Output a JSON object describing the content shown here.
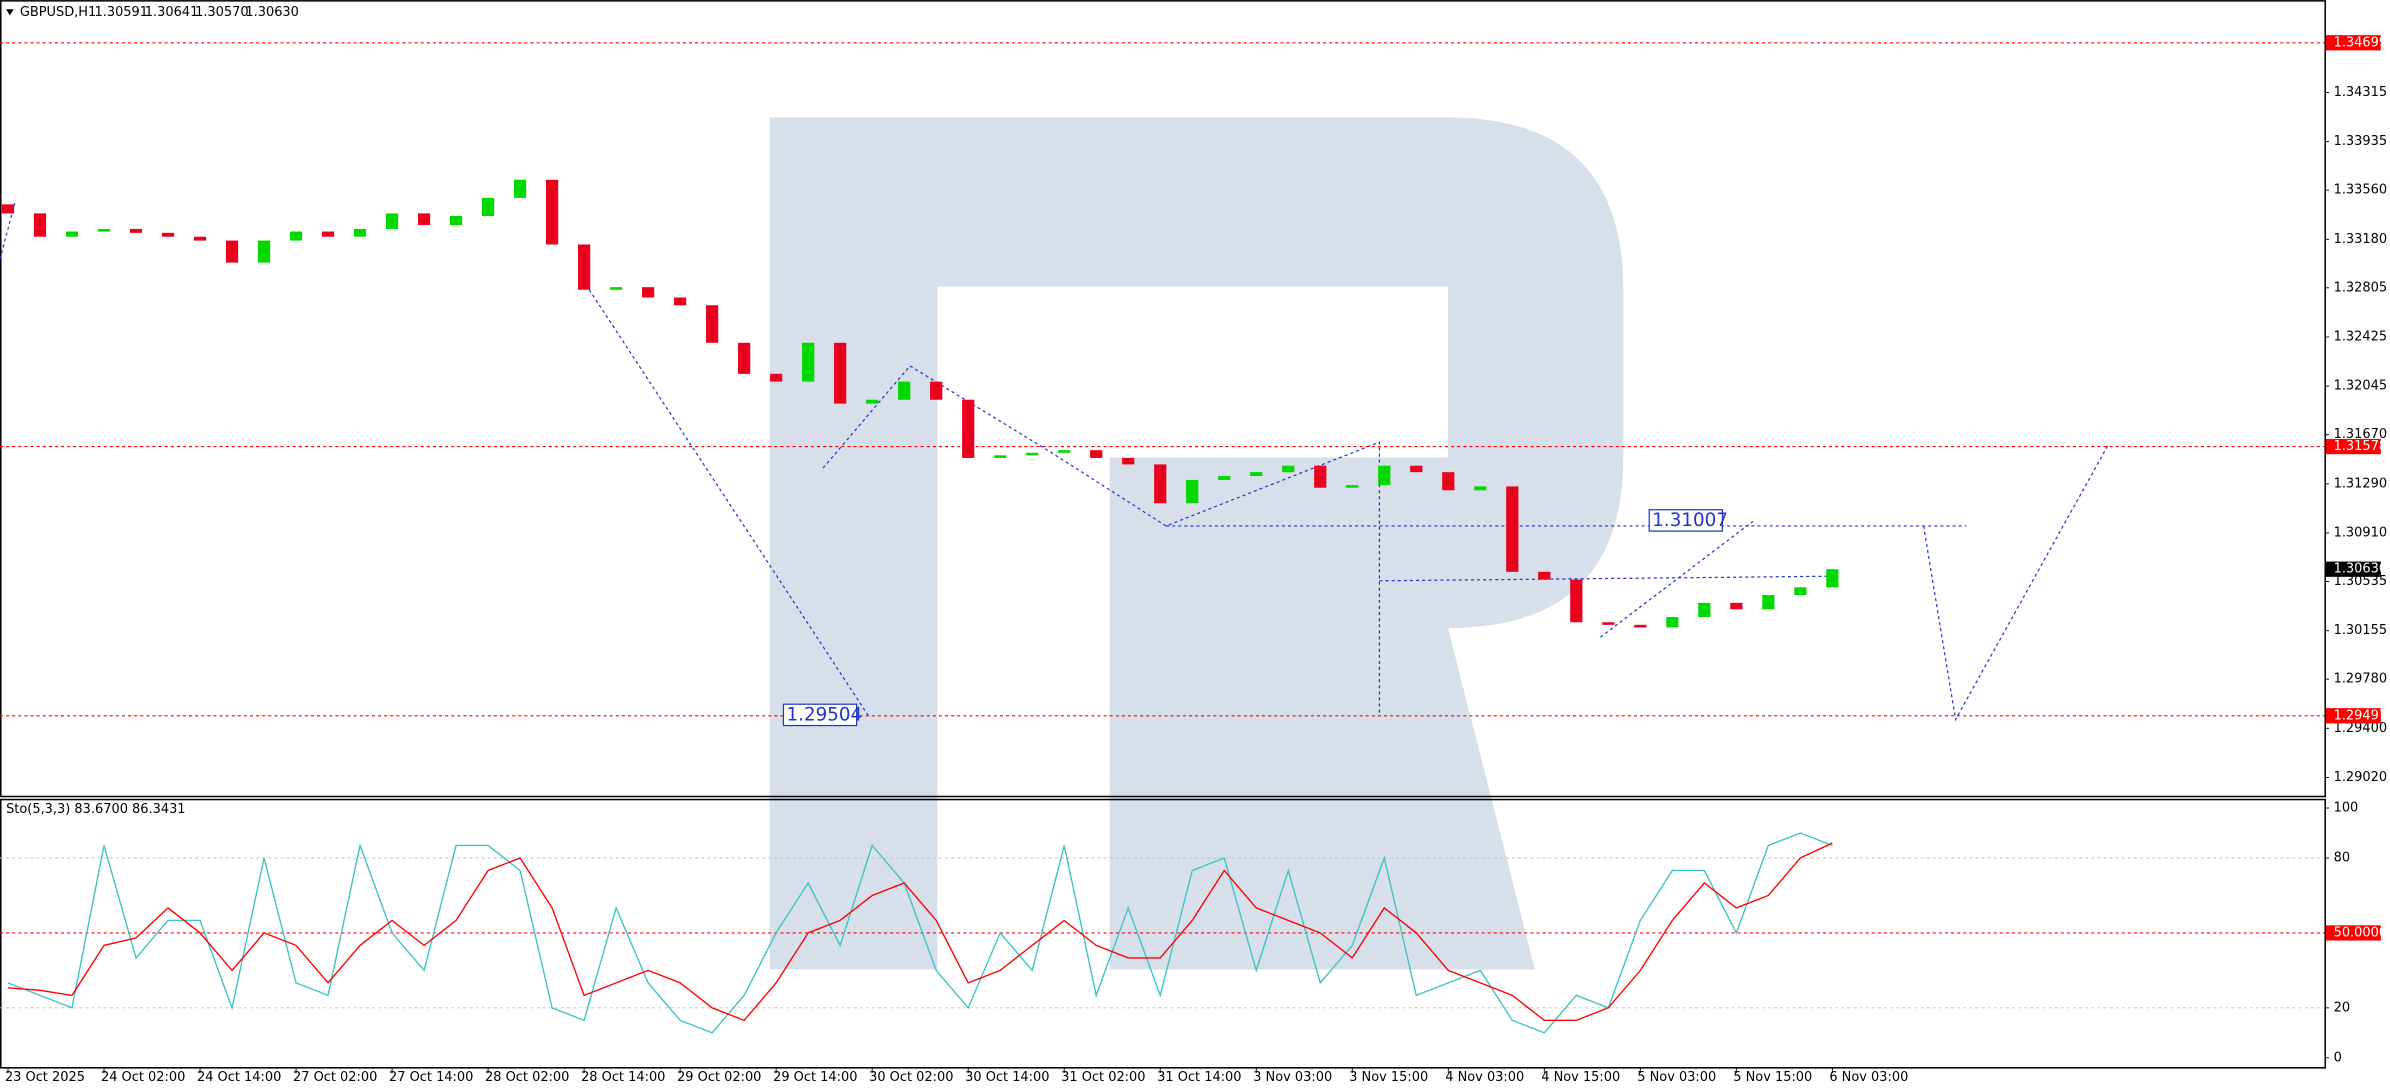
{
  "header": {
    "symbol": "GBPUSD,H1",
    "ohlc": [
      "1.30591",
      "1.30641",
      "1.30570",
      "1.30630"
    ]
  },
  "chart_data": [
    {
      "type": "candlestick",
      "x": [
        0,
        4,
        8,
        12,
        16,
        20,
        24,
        28,
        32,
        36,
        40,
        44,
        48,
        52,
        56,
        60,
        64,
        68,
        72,
        76,
        80,
        84,
        88,
        92,
        96,
        100,
        104,
        108,
        112,
        116,
        120,
        124,
        128,
        132,
        136,
        140,
        144,
        148,
        152,
        156,
        160,
        164,
        168,
        172,
        176,
        180,
        184,
        188,
        192,
        196,
        200,
        204,
        208,
        212,
        216,
        220,
        224,
        228
      ],
      "open": [
        1.3345,
        1.3338,
        1.332,
        1.3324,
        1.3326,
        1.3323,
        1.332,
        1.3317,
        1.33,
        1.3317,
        1.3324,
        1.332,
        1.3326,
        1.3338,
        1.3329,
        1.3336,
        1.335,
        1.3364,
        1.3314,
        1.3279,
        1.3281,
        1.3273,
        1.3267,
        1.3238,
        1.3214,
        1.3208,
        1.3238,
        1.3191,
        1.3194,
        1.3208,
        1.3194,
        1.3149,
        1.3151,
        1.3153,
        1.3155,
        1.3149,
        1.3144,
        1.3114,
        1.3132,
        1.3135,
        1.3138,
        1.3143,
        1.3126,
        1.3128,
        1.3143,
        1.3138,
        1.3124,
        1.3127,
        1.3061,
        1.3055,
        1.3022,
        1.302,
        1.3018,
        1.3026,
        1.3037,
        1.3032,
        1.3043,
        1.3049
      ],
      "close": [
        1.3338,
        1.332,
        1.3324,
        1.3326,
        1.3323,
        1.332,
        1.3317,
        1.33,
        1.3317,
        1.3324,
        1.332,
        1.3326,
        1.3338,
        1.3329,
        1.3336,
        1.335,
        1.3364,
        1.3314,
        1.3279,
        1.3281,
        1.3273,
        1.3267,
        1.3238,
        1.3214,
        1.3208,
        1.3238,
        1.3191,
        1.3194,
        1.3208,
        1.3194,
        1.3149,
        1.3151,
        1.3153,
        1.3155,
        1.3149,
        1.3144,
        1.3114,
        1.3132,
        1.3135,
        1.3138,
        1.3143,
        1.3126,
        1.3128,
        1.3143,
        1.3138,
        1.3124,
        1.3127,
        1.3061,
        1.3055,
        1.3022,
        1.302,
        1.3018,
        1.3026,
        1.3037,
        1.3032,
        1.3043,
        1.3049,
        1.3063
      ],
      "up_color": "#00d800",
      "down_color": "#e8001c",
      "xlim": [
        -1,
        289.5
      ],
      "ylim": [
        1.28879,
        1.35029
      ],
      "yticks": [
        1.34315,
        1.33935,
        {
          "value": 1.3356,
          "label": "1.33560"
        },
        {
          "value": 1.3318,
          "label": "1.33180"
        },
        1.32805,
        1.32425,
        1.32045,
        {
          "value": 1.3167,
          "label": "1.31670"
        },
        {
          "value": 1.3129,
          "label": "1.31290"
        },
        {
          "value": 1.3091,
          "label": "1.30910"
        },
        1.30535,
        1.30155,
        {
          "value": 1.2978,
          "label": "1.29780"
        },
        {
          "value": 1.294,
          "label": "1.29400"
        },
        {
          "value": 1.2902,
          "label": "1.29020"
        }
      ],
      "xticks": [
        {
          "value": 0,
          "label": "23 Oct 2025"
        },
        {
          "value": 12,
          "label": "24 Oct 02:00"
        },
        {
          "value": 24,
          "label": "24 Oct 14:00"
        },
        {
          "value": 36,
          "label": "27 Oct 02:00"
        },
        {
          "value": 48,
          "label": "27 Oct 14:00"
        },
        {
          "value": 60,
          "label": "28 Oct 02:00"
        },
        {
          "value": 72,
          "label": "28 Oct 14:00"
        },
        {
          "value": 84,
          "label": "29 Oct 02:00"
        },
        {
          "value": 96,
          "label": "29 Oct 14:00"
        },
        {
          "value": 108,
          "label": "30 Oct 02:00"
        },
        {
          "value": 120,
          "label": "30 Oct 14:00"
        },
        {
          "value": 132,
          "label": "31 Oct 02:00"
        },
        {
          "value": 144,
          "label": "31 Oct 14:00"
        },
        {
          "value": 156,
          "label": "3 Nov 03:00"
        },
        {
          "value": 168,
          "label": "3 Nov 15:00"
        },
        {
          "value": 180,
          "label": "4 Nov 03:00"
        },
        {
          "value": 192,
          "label": "4 Nov 15:00"
        },
        {
          "value": 204,
          "label": "5 Nov 03:00"
        },
        {
          "value": 216,
          "label": "5 Nov 15:00"
        },
        {
          "value": 228,
          "label": "6 Nov 03:00"
        }
      ],
      "levels": [
        1.34699,
        1.31578,
        1.29497
      ],
      "level_color": "#ff0000",
      "current_price": {
        "value": 1.3063,
        "label": "1.30630"
      },
      "annotations": [
        1.31007,
        1.29504
      ]
    },
    {
      "type": "line",
      "title": "Sto(5,3,3) 83.6700 86.3431",
      "x": [
        0,
        4,
        8,
        12,
        16,
        20,
        24,
        28,
        32,
        36,
        40,
        44,
        48,
        52,
        56,
        60,
        64,
        68,
        72,
        76,
        80,
        84,
        88,
        92,
        96,
        100,
        104,
        108,
        112,
        116,
        120,
        124,
        128,
        132,
        136,
        140,
        144,
        148,
        152,
        156,
        160,
        164,
        168,
        172,
        176,
        180,
        184,
        188,
        192,
        196,
        200,
        204,
        208,
        212,
        216,
        220,
        224,
        228
      ],
      "xlim": [
        -1,
        289.5
      ],
      "ylim": [
        -3.7,
        103.7
      ],
      "series": [
        {
          "color": "#3cc3c3",
          "values": [
            30,
            25,
            20,
            85,
            40,
            55,
            55,
            20,
            80,
            30,
            25,
            85,
            50,
            35,
            85,
            85,
            75,
            20,
            15,
            60,
            30,
            15,
            10,
            25,
            50,
            70,
            45,
            85,
            70,
            35,
            20,
            50,
            35,
            85,
            25,
            60,
            25,
            75,
            80,
            35,
            75,
            30,
            45,
            80,
            25,
            30,
            35,
            15,
            10,
            25,
            20,
            55,
            75,
            75,
            50,
            85,
            90,
            85
          ]
        },
        {
          "color": "#ff0000",
          "values": [
            28,
            27,
            25,
            45,
            48,
            60,
            50,
            35,
            50,
            45,
            30,
            45,
            55,
            45,
            55,
            75,
            80,
            60,
            25,
            30,
            35,
            30,
            20,
            15,
            30,
            50,
            55,
            65,
            70,
            55,
            30,
            35,
            45,
            55,
            45,
            40,
            40,
            55,
            75,
            60,
            55,
            50,
            40,
            60,
            50,
            35,
            30,
            25,
            15,
            15,
            20,
            35,
            55,
            70,
            60,
            65,
            80,
            86
          ]
        }
      ],
      "yticks": [
        100,
        80,
        20,
        0
      ],
      "levels": [
        {
          "value": 50,
          "label": "50.0000"
        }
      ],
      "level_color": "#ff0000"
    }
  ]
}
